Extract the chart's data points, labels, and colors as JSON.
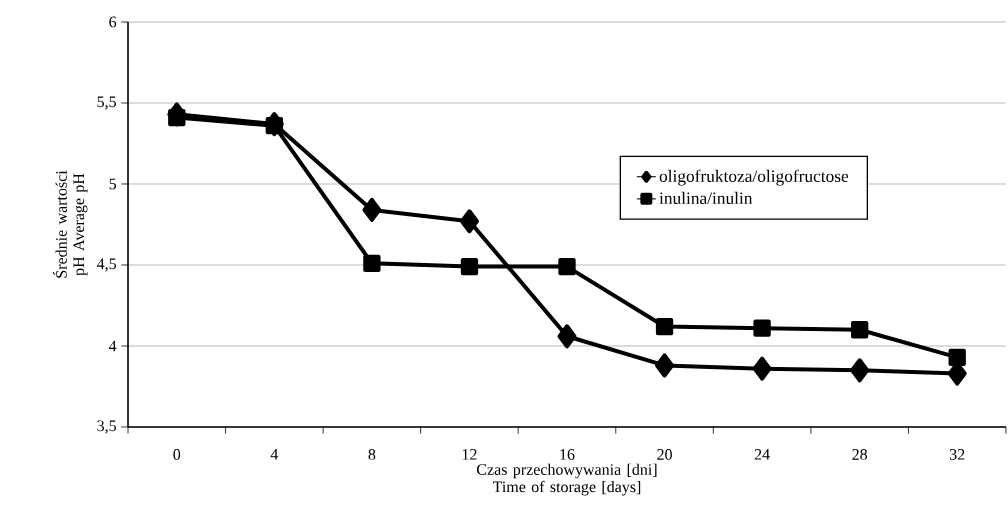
{
  "chart_data": {
    "type": "line",
    "xlabel": "Czas przechowywania [dni] Time of storage [days]",
    "ylabel": "Średnie wartości pH Average pH",
    "categories": [
      "0",
      "4",
      "8",
      "12",
      "16",
      "20",
      "24",
      "28",
      "32"
    ],
    "series": [
      {
        "name": "oligofruktoza/oligofructose",
        "color": "#000000",
        "marker": "diamond",
        "values": [
          5.43,
          5.37,
          4.84,
          4.77,
          4.06,
          3.88,
          3.86,
          3.85,
          3.83
        ]
      },
      {
        "name": "inulina/inulin",
        "color": "#000000",
        "marker": "square",
        "values": [
          5.41,
          5.36,
          4.51,
          4.49,
          4.49,
          4.12,
          4.11,
          4.1,
          3.93
        ]
      }
    ],
    "ylim": [
      3.5,
      6
    ],
    "yticks": [
      {
        "value": 3.5,
        "label": "3,5"
      },
      4,
      {
        "value": 4.5,
        "label": "4,5"
      },
      5,
      {
        "value": 5.5,
        "label": "5,5"
      },
      6
    ],
    "grid": "y",
    "legend": "right",
    "line_style": "solid"
  }
}
